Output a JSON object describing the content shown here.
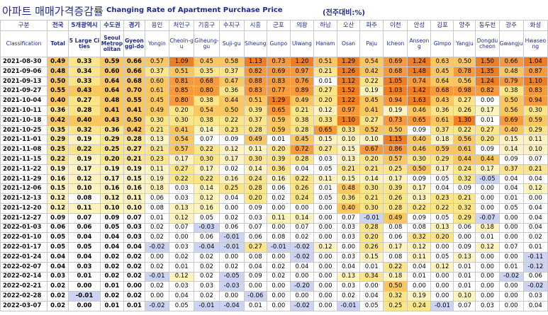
{
  "title_ko": "아파트 매매가격증감률",
  "title_en": "Changing Rate of Apartment Purchase Price",
  "unit": "(전주대비:%)",
  "colors": {
    "header_text": "#1f2a8a",
    "scale_white": "#ffffff",
    "scale_pale_yellow": "#fff4c0",
    "scale_yellow": "#fde68a",
    "scale_light_orange": "#fbc760",
    "scale_orange": "#f79a3c",
    "scale_deep_orange": "#ef7d22",
    "negative_blue": "#cdd3f2"
  },
  "header": {
    "corner_ko": "구분",
    "corner_en": "Classification",
    "columns": [
      {
        "ko": "전국",
        "en": "Total"
      },
      {
        "ko": "5개광역시",
        "en": "5 Large Cities"
      },
      {
        "ko": "수도권",
        "en": "Seoul Metropolitan"
      },
      {
        "ko": "경기",
        "en": "Gyeonggi-do"
      },
      {
        "ko": "용인",
        "en": "Yongin"
      },
      {
        "ko": "처인구",
        "en": "Cheoin-gu"
      },
      {
        "ko": "기흥구",
        "en": "Giheung-gu"
      },
      {
        "ko": "수지구",
        "en": "Suji-gu"
      },
      {
        "ko": "시흥",
        "en": "Siheung"
      },
      {
        "ko": "군포",
        "en": "Gunpo"
      },
      {
        "ko": "의왕",
        "en": "Uiwang"
      },
      {
        "ko": "하남",
        "en": "Hanam"
      },
      {
        "ko": "오산",
        "en": "Osan"
      },
      {
        "ko": "파주",
        "en": "Paju"
      },
      {
        "ko": "이천",
        "en": "Icheon"
      },
      {
        "ko": "안성",
        "en": "Anseong"
      },
      {
        "ko": "김포",
        "en": "Gimpo"
      },
      {
        "ko": "양주",
        "en": "Yangju"
      },
      {
        "ko": "동두천",
        "en": "Dongducheon"
      },
      {
        "ko": "광주",
        "en": "Gwangju"
      },
      {
        "ko": "화성",
        "en": "Hwaseong"
      }
    ]
  },
  "rows": [
    {
      "date": "2021-08-30",
      "values": [
        "0.49",
        "0.33",
        "0.59",
        "0.66",
        "0.57",
        "1.09",
        "0.45",
        "0.58",
        "1.13",
        "0.73",
        "1.20",
        "0.51",
        "1.29",
        "0.54",
        "0.69",
        "1.24",
        "0.63",
        "0.50",
        "1.50",
        "0.66",
        "1.04"
      ]
    },
    {
      "date": "2021-09-06",
      "values": [
        "0.48",
        "0.34",
        "0.60",
        "0.66",
        "0.37",
        "0.51",
        "0.35",
        "0.37",
        "0.82",
        "0.69",
        "0.97",
        "0.21",
        "1.26",
        "0.42",
        "0.68",
        "1.48",
        "0.45",
        "0.78",
        "1.35",
        "0.48",
        "0.87"
      ]
    },
    {
      "date": "2021-09-13",
      "values": [
        "0.50",
        "0.33",
        "0.64",
        "0.68",
        "0.60",
        "0.81",
        "0.68",
        "0.47",
        "0.88",
        "0.83",
        "0.76",
        "0.01",
        "1.12",
        "0.22",
        "1.05",
        "0.74",
        "0.64",
        "0.56",
        "1.24",
        "0.79",
        "1.10"
      ]
    },
    {
      "date": "2021-09-27",
      "values": [
        "0.55",
        "0.43",
        "0.64",
        "0.70",
        "0.61",
        "0.85",
        "0.80",
        "0.36",
        "0.83",
        "0.77",
        "0.89",
        "0.27",
        "1.52",
        "0.19",
        "1.03",
        "1.42",
        "0.68",
        "0.98",
        "0.82",
        "0.38",
        "0.83"
      ]
    },
    {
      "date": "2021-10-04",
      "values": [
        "0.40",
        "0.27",
        "0.48",
        "0.55",
        "0.45",
        "0.80",
        "0.38",
        "0.44",
        "0.51",
        "1.29",
        "0.49",
        "0.20",
        "1.22",
        "0.45",
        "0.94",
        "1.63",
        "0.43",
        "0.27",
        "0.00",
        "0.50",
        "0.94"
      ]
    },
    {
      "date": "2021-10-11",
      "values": [
        "0.36",
        "0.28",
        "0.41",
        "0.41",
        "0.49",
        "0.20",
        "0.54",
        "0.50",
        "0.39",
        "0.65",
        "0.21",
        "0.12",
        "0.97",
        "0.41",
        "0.19",
        "0.46",
        "0.36",
        "0.26",
        "0.17",
        "0.56",
        "0.30"
      ]
    },
    {
      "date": "2021-10-18",
      "values": [
        "0.42",
        "0.40",
        "0.43",
        "0.50",
        "0.30",
        "0.30",
        "0.38",
        "0.22",
        "0.37",
        "0.59",
        "0.38",
        "0.33",
        "1.10",
        "0.27",
        "0.73",
        "0.65",
        "0.61",
        "1.30",
        "0.01",
        "0.69",
        "0.59"
      ]
    },
    {
      "date": "2021-10-25",
      "values": [
        "0.35",
        "0.32",
        "0.36",
        "0.42",
        "0.21",
        "0.41",
        "0.14",
        "0.23",
        "0.28",
        "0.59",
        "0.28",
        "0.65",
        "0.33",
        "0.52",
        "0.50",
        "0.09",
        "0.37",
        "0.22",
        "0.27",
        "0.40",
        "0.29"
      ]
    },
    {
      "date": "2021-11-01",
      "values": [
        "0.29",
        "0.19",
        "0.29",
        "0.28",
        "0.13",
        "0.54",
        "0.07",
        "0.09",
        "0.49",
        "0.01",
        "0.45",
        "0.15",
        "0.10",
        "0.10",
        "1.15",
        "0.40",
        "0.18",
        "0.56",
        "0.20",
        "0.15",
        "0.11"
      ]
    },
    {
      "date": "2021-11-08",
      "values": [
        "0.25",
        "0.22",
        "0.25",
        "0.27",
        "0.21",
        "0.57",
        "0.22",
        "0.12",
        "0.11",
        "0.20",
        "0.72",
        "0.27",
        "0.15",
        "0.67",
        "0.86",
        "0.46",
        "0.59",
        "0.61",
        "0.09",
        "0.14",
        "0.10"
      ]
    },
    {
      "date": "2021-11-15",
      "values": [
        "0.22",
        "0.19",
        "0.20",
        "0.21",
        "0.23",
        "0.17",
        "0.30",
        "0.17",
        "0.30",
        "0.39",
        "0.28",
        "0.03",
        "0.13",
        "0.20",
        "0.57",
        "0.30",
        "0.29",
        "0.44",
        "0.44",
        "0.09",
        "0.07"
      ]
    },
    {
      "date": "2021-11-22",
      "values": [
        "0.19",
        "0.17",
        "0.19",
        "0.19",
        "0.11",
        "0.27",
        "0.17",
        "0.02",
        "0.14",
        "0.36",
        "0.04",
        "0.05",
        "0.21",
        "0.21",
        "0.25",
        "0.50",
        "0.17",
        "0.24",
        "0.17",
        "0.37",
        "0.21"
      ]
    },
    {
      "date": "2021-11-29",
      "values": [
        "0.16",
        "0.12",
        "0.17",
        "0.15",
        "0.19",
        "0.22",
        "0.22",
        "0.16",
        "0.24",
        "0.16",
        "0.22",
        "0.11",
        "0.15",
        "0.14",
        "0.17",
        "0.09",
        "0.05",
        "0.32",
        "-0.05",
        "0.04",
        "0.04"
      ]
    },
    {
      "date": "2021-12-06",
      "values": [
        "0.15",
        "0.10",
        "0.16",
        "0.16",
        "0.18",
        "0.03",
        "0.14",
        "0.25",
        "0.28",
        "0.06",
        "0.26",
        "0.01",
        "0.48",
        "0.30",
        "0.39",
        "0.17",
        "0.04",
        "0.09",
        "0.00",
        "0.04",
        "0.12"
      ]
    },
    {
      "date": "2021-12-13",
      "values": [
        "0.12",
        "0.08",
        "0.12",
        "0.11",
        "0.06",
        "0.03",
        "0.12",
        "0.04",
        "0.20",
        "0.02",
        "0.24",
        "0.05",
        "0.36",
        "0.21",
        "0.26",
        "0.13",
        "0.23",
        "0.21",
        "0.00",
        "0.01",
        "0.00"
      ]
    },
    {
      "date": "2021-12-20",
      "values": [
        "0.12",
        "0.11",
        "0.10",
        "0.10",
        "0.08",
        "0.13",
        "0.16",
        "0.00",
        "0.09",
        "0.00",
        "0.00",
        "0.00",
        "0.40",
        "0.30",
        "0.28",
        "0.22",
        "0.22",
        "0.32",
        "0.00",
        "0.05",
        "0.04"
      ]
    },
    {
      "date": "2021-12-27",
      "values": [
        "0.09",
        "0.07",
        "0.09",
        "0.07",
        "0.01",
        "0.12",
        "0.05",
        "0.02",
        "0.03",
        "0.11",
        "0.14",
        "0.00",
        "0.07",
        "-0.01",
        "0.49",
        "0.09",
        "0.05",
        "0.29",
        "-0.07",
        "0.00",
        "0.04"
      ]
    },
    {
      "date": "2022-01-03",
      "values": [
        "0.06",
        "0.06",
        "0.05",
        "0.03",
        "0.02",
        "0.07",
        "-0.03",
        "0.06",
        "0.07",
        "0.00",
        "0.07",
        "0.00",
        "0.03",
        "0.28",
        "0.08",
        "0.08",
        "0.13",
        "0.06",
        "0.18",
        "0.00",
        "0.04"
      ]
    },
    {
      "date": "2022-01-10",
      "values": [
        "0.05",
        "0.04",
        "0.04",
        "0.03",
        "0.02",
        "0.00",
        "0.06",
        "-0.01",
        "0.06",
        "0.08",
        "0.02",
        "0.00",
        "0.03",
        "0.20",
        "0.06",
        "0.32",
        "0.20",
        "0.00",
        "0.01",
        "0.00",
        "0.02"
      ]
    },
    {
      "date": "2022-01-17",
      "values": [
        "0.05",
        "0.05",
        "0.04",
        "0.04",
        "-0.02",
        "0.03",
        "-0.04",
        "-0.01",
        "0.27",
        "-0.01",
        "-0.02",
        "0.12",
        "0.00",
        "0.26",
        "0.17",
        "0.12",
        "0.00",
        "0.09",
        "0.12",
        "0.07",
        "0.01"
      ]
    },
    {
      "date": "2022-01-24",
      "values": [
        "0.04",
        "0.04",
        "0.02",
        "0.02",
        "0.00",
        "0.02",
        "0.02",
        "0.00",
        "0.08",
        "0.00",
        "-0.02",
        "0.00",
        "0.03",
        "0.15",
        "0.08",
        "0.11",
        "0.05",
        "0.13",
        "0.00",
        "0.00",
        "-0.11"
      ]
    },
    {
      "date": "2022-02-07",
      "values": [
        "0.04",
        "0.03",
        "0.02",
        "0.02",
        "0.02",
        "0.01",
        "0.02",
        "0.02",
        "0.04",
        "0.02",
        "0.04",
        "0.00",
        "0.04",
        "0.01",
        "0.22",
        "0.04",
        "0.12",
        "0.01",
        "0.00",
        "0.01",
        "-0.12"
      ]
    },
    {
      "date": "2022-02-14",
      "values": [
        "0.03",
        "0.01",
        "0.02",
        "0.02",
        "-0.01",
        "0.12",
        "0.02",
        "-0.05",
        "0.09",
        "0.02",
        "0.00",
        "0.00",
        "0.13",
        "0.34",
        "0.18",
        "0.01",
        "0.00",
        "0.01",
        "0.00",
        "-0.02",
        "0.06"
      ]
    },
    {
      "date": "2022-02-21",
      "values": [
        "0.02",
        "0.00",
        "0.01",
        "0.00",
        "0.02",
        "0.03",
        "0.03",
        "-0.03",
        "0.00",
        "0.00",
        "-0.20",
        "0.00",
        "0.03",
        "0.00",
        "0.50",
        "0.00",
        "0.00",
        "0.01",
        "0.00",
        "0.00",
        "-0.02"
      ]
    },
    {
      "date": "2022-02-28",
      "values": [
        "0.02",
        "-0.01",
        "0.02",
        "0.02",
        "0.00",
        "0.04",
        "0.02",
        "0.00",
        "-0.06",
        "0.00",
        "0.00",
        "0.00",
        "0.02",
        "0.04",
        "0.32",
        "0.19",
        "0.00",
        "0.10",
        "0.00",
        "0.00",
        "0.03"
      ]
    },
    {
      "date": "2022-03-07",
      "values": [
        "0.02",
        "0.00",
        "0.01",
        "0.01",
        "-0.02",
        "0.05",
        "-0.01",
        "-0.04",
        "0.01",
        "0.00",
        "-0.02",
        "0.00",
        "-0.01",
        "0.05",
        "0.25",
        "0.24",
        "-0.01",
        "0.07",
        "0.03",
        "0.00",
        "0.04"
      ]
    }
  ]
}
